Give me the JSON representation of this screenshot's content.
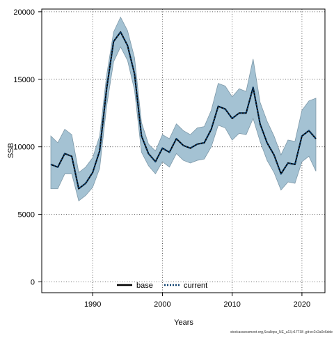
{
  "chart_data": {
    "type": "line",
    "title": "",
    "xlabel": "Years",
    "ylabel": "SSB",
    "xlim": [
      1982.7,
      2023.3
    ],
    "ylim": [
      -800,
      20200
    ],
    "x_ticks": [
      1990,
      2000,
      2010,
      2020
    ],
    "y_ticks": [
      0,
      5000,
      10000,
      15000,
      20000
    ],
    "grid": true,
    "grid_style": "dotted",
    "legend_position": "bottom-center",
    "footer": "stockassessment.org,Scallops_NE_a13,r17738 ,git:ec2c2a0c6dde",
    "x": [
      1984,
      1985,
      1986,
      1987,
      1988,
      1989,
      1990,
      1991,
      1992,
      1993,
      1994,
      1995,
      1996,
      1997,
      1998,
      1999,
      2000,
      2001,
      2002,
      2003,
      2004,
      2005,
      2006,
      2007,
      2008,
      2009,
      2010,
      2011,
      2012,
      2013,
      2014,
      2015,
      2016,
      2017,
      2018,
      2019,
      2020,
      2021,
      2022
    ],
    "band": {
      "upper": [
        10800,
        10300,
        11300,
        10900,
        8100,
        8500,
        9200,
        10800,
        15300,
        18500,
        19600,
        18600,
        16600,
        11800,
        10200,
        9700,
        10900,
        10600,
        11700,
        11200,
        10900,
        11400,
        11500,
        12700,
        14700,
        14500,
        13700,
        14300,
        14100,
        16500,
        13300,
        11900,
        10800,
        9400,
        10500,
        10400,
        12700,
        13400,
        13600
      ],
      "lower": [
        6900,
        6900,
        8000,
        8000,
        6000,
        6400,
        7000,
        8400,
        13000,
        16300,
        17400,
        16400,
        14200,
        9600,
        8600,
        8000,
        8900,
        8500,
        9500,
        9000,
        8800,
        9000,
        9100,
        10000,
        11600,
        11400,
        10500,
        11000,
        10900,
        12100,
        10400,
        9000,
        8100,
        6800,
        7400,
        7300,
        8900,
        9300,
        8200
      ]
    },
    "series": [
      {
        "name": "base",
        "values": [
          8700,
          8500,
          9500,
          9300,
          6900,
          7300,
          8100,
          9700,
          14300,
          17800,
          18500,
          17500,
          15400,
          10800,
          9500,
          8900,
          9900,
          9600,
          10600,
          10100,
          9900,
          10200,
          10300,
          11300,
          13000,
          12800,
          12100,
          12500,
          12500,
          14400,
          11700,
          10300,
          9400,
          8000,
          8800,
          8700,
          10800,
          11200,
          10600
        ],
        "color": "#000000",
        "line_style": "solid"
      },
      {
        "name": "current",
        "values": [
          8700,
          8500,
          9500,
          9300,
          6900,
          7300,
          8100,
          9700,
          14300,
          17800,
          18500,
          17500,
          15400,
          10800,
          9500,
          8900,
          9900,
          9600,
          10600,
          10100,
          9900,
          10200,
          10300,
          11300,
          13000,
          12800,
          12100,
          12500,
          12500,
          14400,
          11700,
          10300,
          9400,
          8000,
          8800,
          8700,
          10800,
          11200,
          10600
        ],
        "color": "#0b3f6e",
        "line_style": "dotted"
      }
    ],
    "colors": {
      "band_fill": "#a4c2d3",
      "band_stroke": "#7d98a8",
      "axis": "#000000",
      "grid": "#333333"
    }
  }
}
